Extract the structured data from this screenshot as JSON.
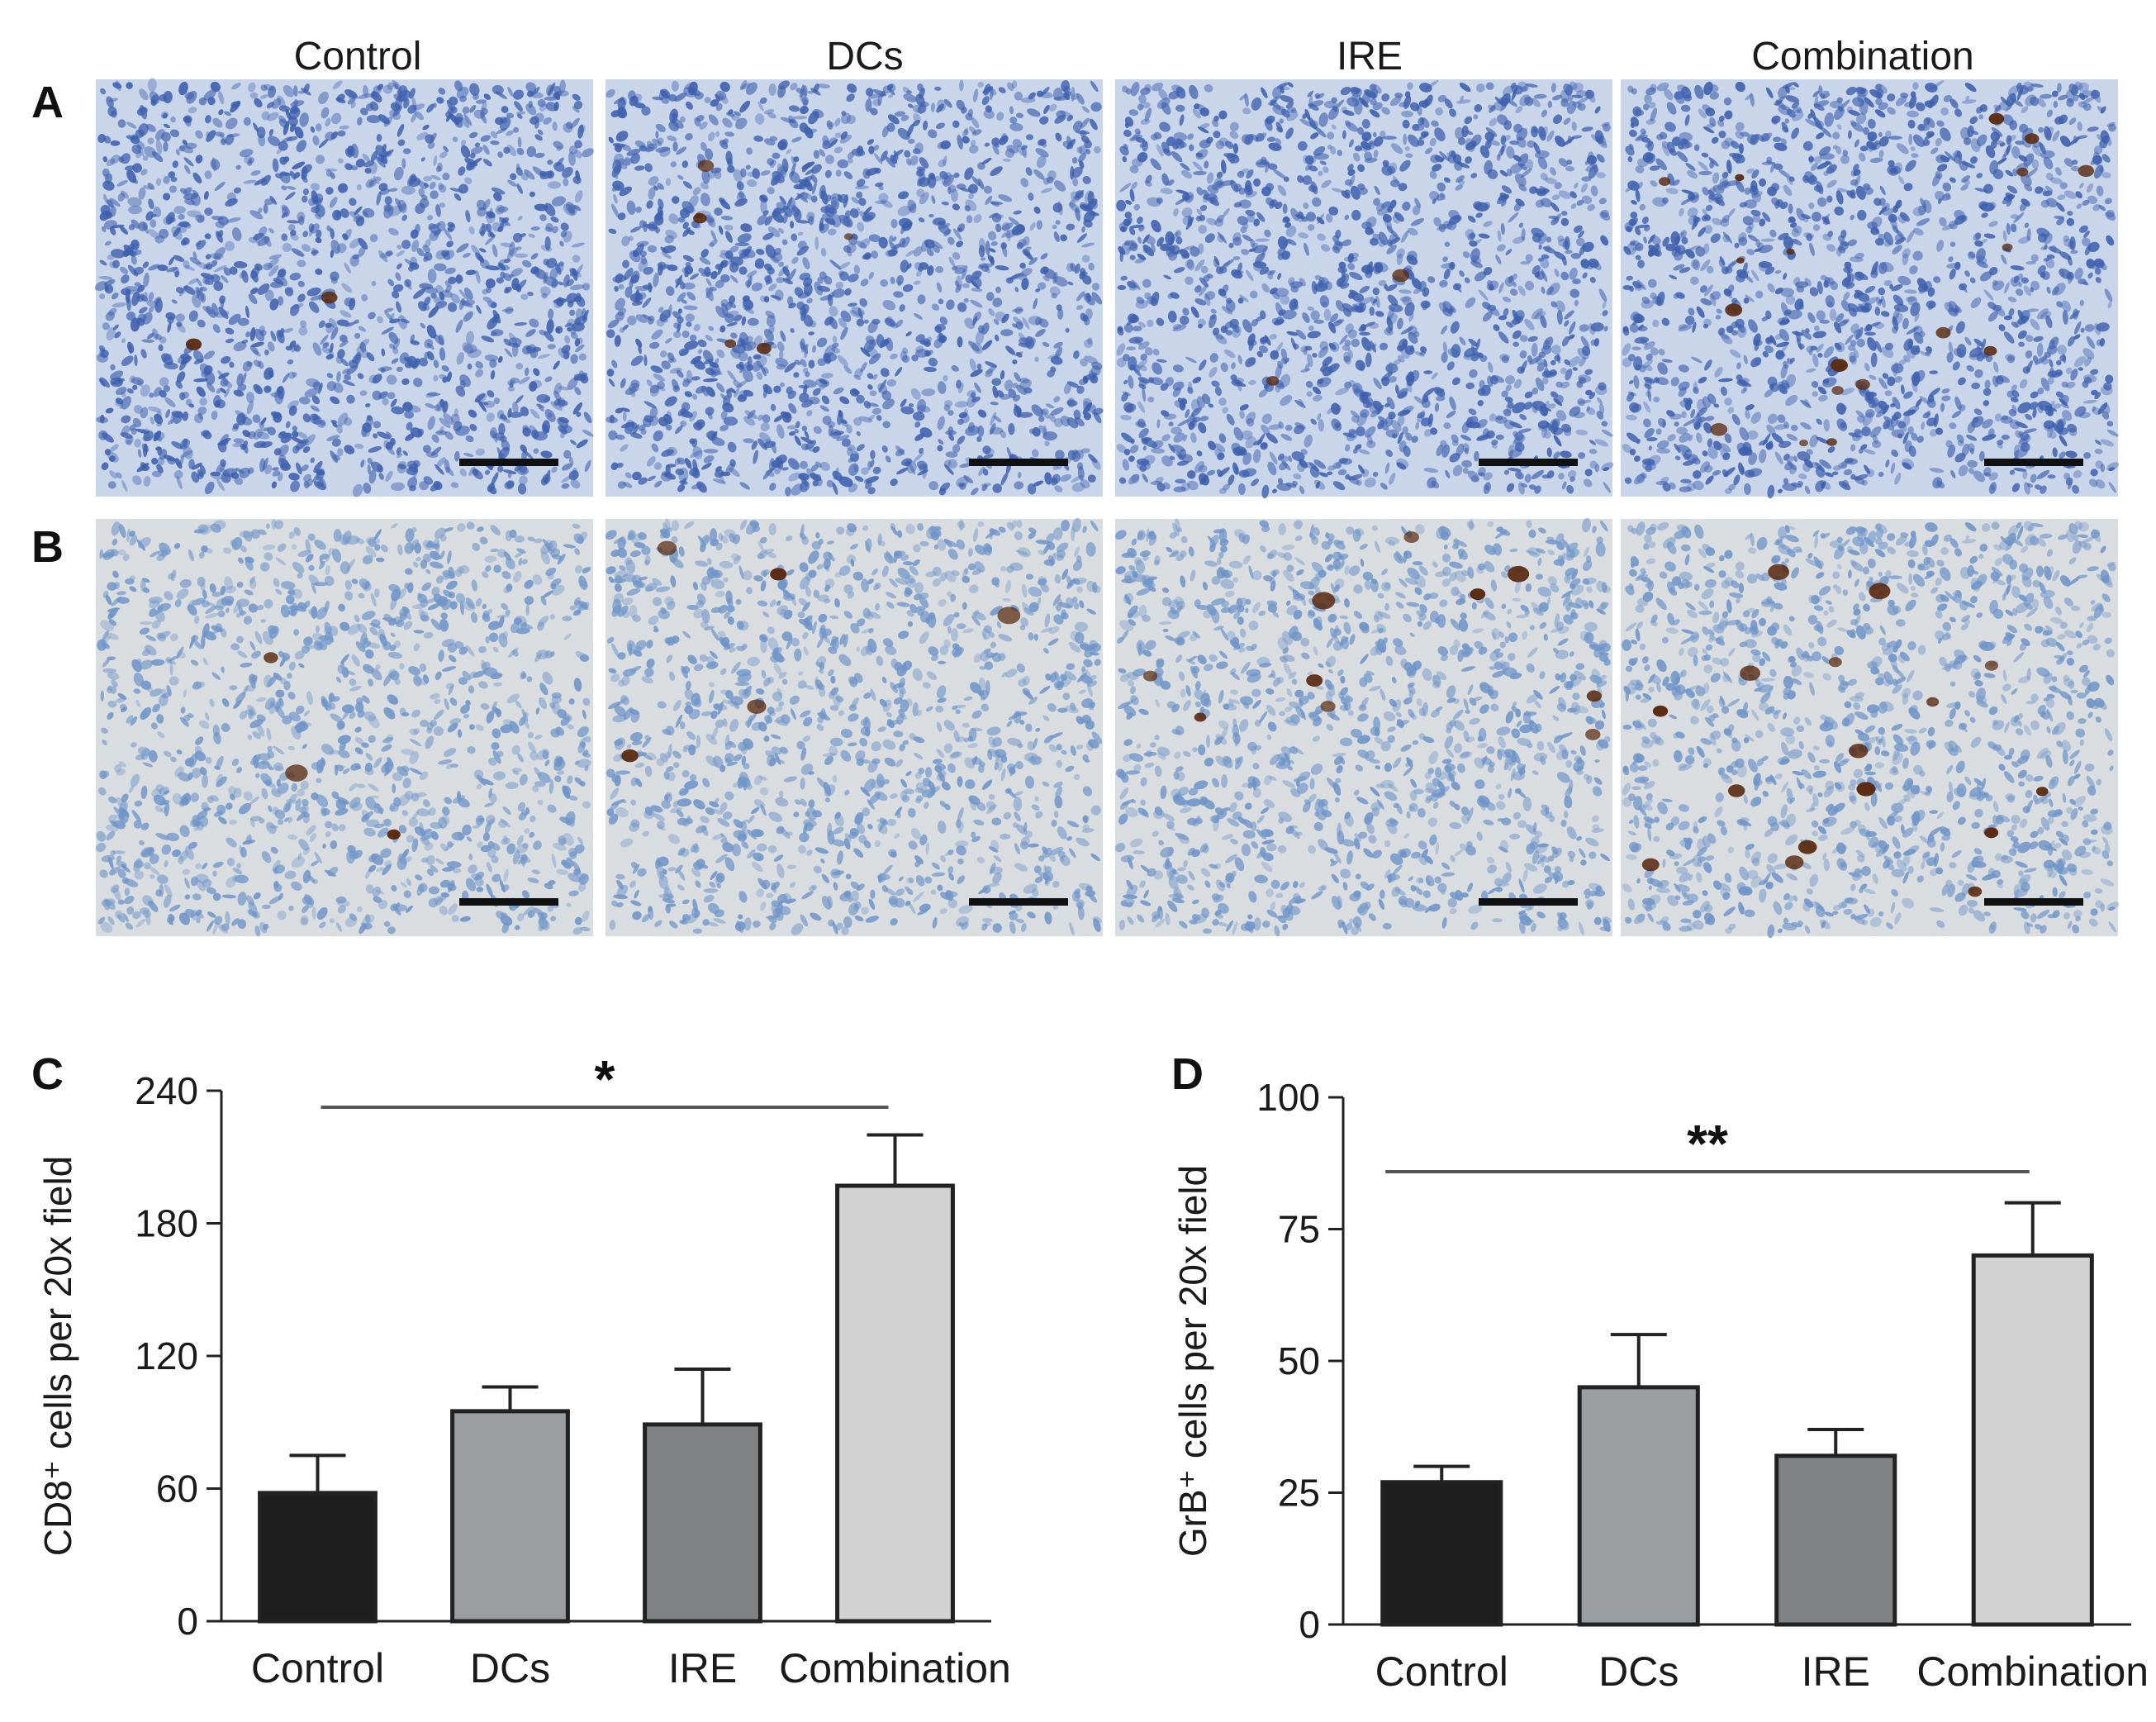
{
  "figure": {
    "column_titles": [
      "Control",
      "DCs",
      "IRE",
      "Combination"
    ],
    "panels": {
      "A": "A",
      "B": "B",
      "C": "C",
      "D": "D"
    },
    "tissue_colors": {
      "A_background": "#c9d6ea",
      "B_background": "#d9dde0",
      "nucleus_A": "#3d5fae",
      "nucleus_B": "#6e94c8",
      "stain_brown": "#5a2a10"
    }
  },
  "chart_data": [
    {
      "type": "bar",
      "panel": "C",
      "categories": [
        "Control",
        "DCs",
        "IRE",
        "Combination"
      ],
      "values": [
        58,
        95,
        89,
        197
      ],
      "errors": [
        17,
        11,
        25,
        23
      ],
      "colors": [
        "#1e1e1e",
        "#9a9ea1",
        "#808284",
        "#d2d2d2"
      ],
      "title": "",
      "xlabel": "",
      "ylabel": "CD8⁺ cells per 20x field",
      "ylim": [
        0,
        240
      ],
      "yticks": [
        0,
        60,
        120,
        180,
        240
      ],
      "significance": {
        "label": "*",
        "from": "Control",
        "to": "Combination"
      }
    },
    {
      "type": "bar",
      "panel": "D",
      "categories": [
        "Control",
        "DCs",
        "IRE",
        "Combination"
      ],
      "values": [
        27,
        45,
        32,
        70
      ],
      "errors": [
        3,
        10,
        5,
        10
      ],
      "colors": [
        "#1e1e1e",
        "#9a9ea1",
        "#808284",
        "#d2d2d2"
      ],
      "title": "",
      "xlabel": "",
      "ylabel": "GrB⁺ cells per 20x field",
      "ylim": [
        0,
        100
      ],
      "yticks": [
        0,
        25,
        50,
        75,
        100
      ],
      "significance": {
        "label": "**",
        "from": "Control",
        "to": "Combination"
      }
    }
  ]
}
